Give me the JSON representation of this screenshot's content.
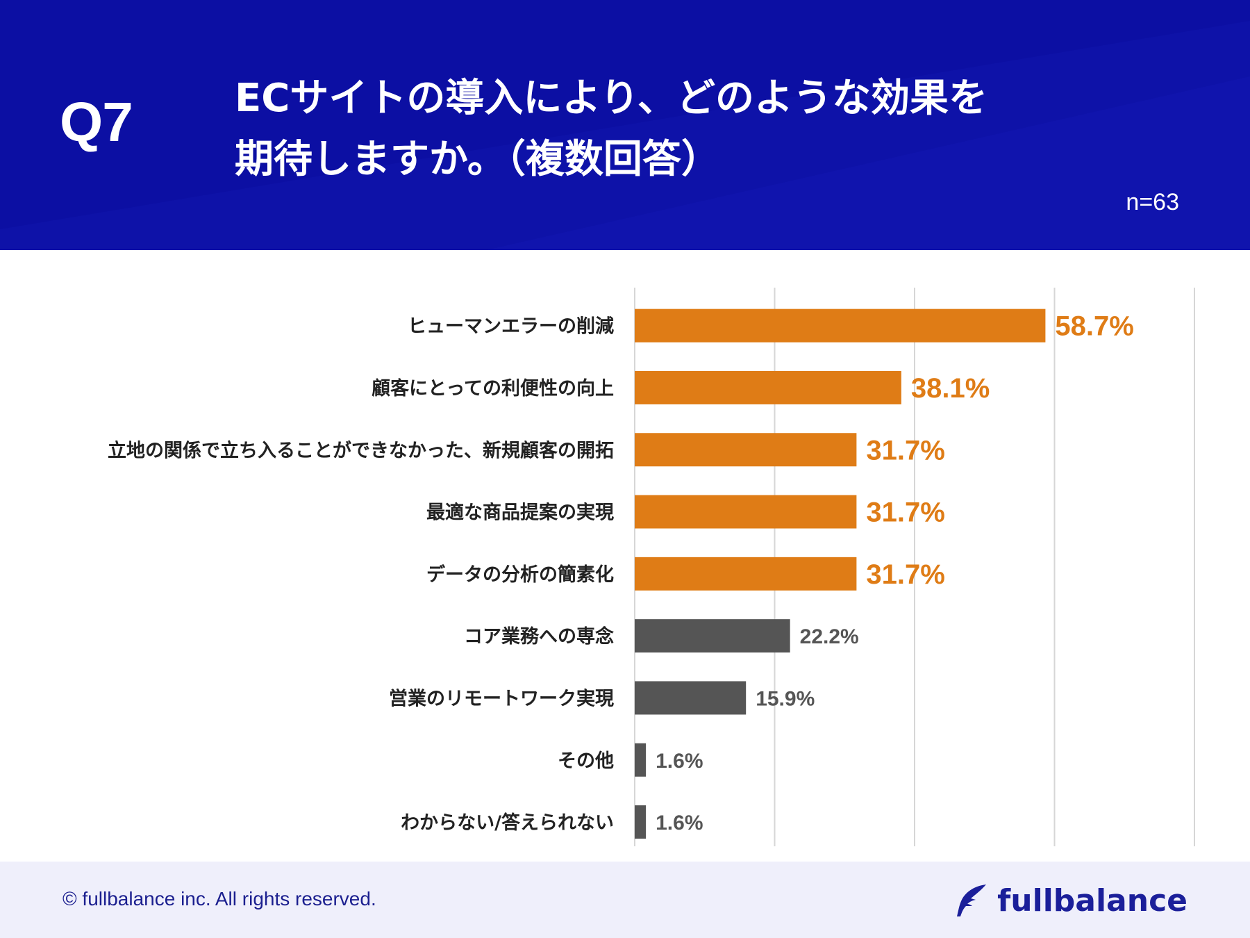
{
  "header": {
    "question": "Q7",
    "title_line1": "ECサイトの導入により、どのような効果を",
    "title_line2": "期待しますか。（複数回答）",
    "sample_size": "n=63"
  },
  "colors": {
    "header_bg": "#0c0fa3",
    "highlight": "#df7c16",
    "normal": "#555555",
    "footer_bg": "#efeffb",
    "brand": "#1b1f9a"
  },
  "chart_data": {
    "type": "bar",
    "orientation": "horizontal",
    "title": "ECサイトの導入により、どのような効果を期待しますか。（複数回答）",
    "categories": [
      "ヒューマンエラーの削減",
      "顧客にとっての利便性の向上",
      "立地の関係で立ち入ることができなかった、新規顧客の開拓",
      "最適な商品提案の実現",
      "データの分析の簡素化",
      "コア業務への専念",
      "営業のリモートワーク実現",
      "その他",
      "わからない/答えられない"
    ],
    "values": [
      58.7,
      38.1,
      31.7,
      31.7,
      31.7,
      22.2,
      15.9,
      1.6,
      1.6
    ],
    "labels": [
      "58.7%",
      "38.1%",
      "31.7%",
      "31.7%",
      "31.7%",
      "22.2%",
      "15.9%",
      "1.6%",
      "1.6%"
    ],
    "highlighted": [
      true,
      true,
      true,
      true,
      true,
      false,
      false,
      false,
      false
    ],
    "xlim": [
      0,
      80
    ],
    "gridlines": [
      0,
      20,
      40,
      60,
      80
    ],
    "unit": "%"
  },
  "footer": {
    "copyright": "© fullbalance inc. All rights reserved.",
    "brand": "fullbalance",
    "brand_icon": "feather-logo-icon"
  }
}
